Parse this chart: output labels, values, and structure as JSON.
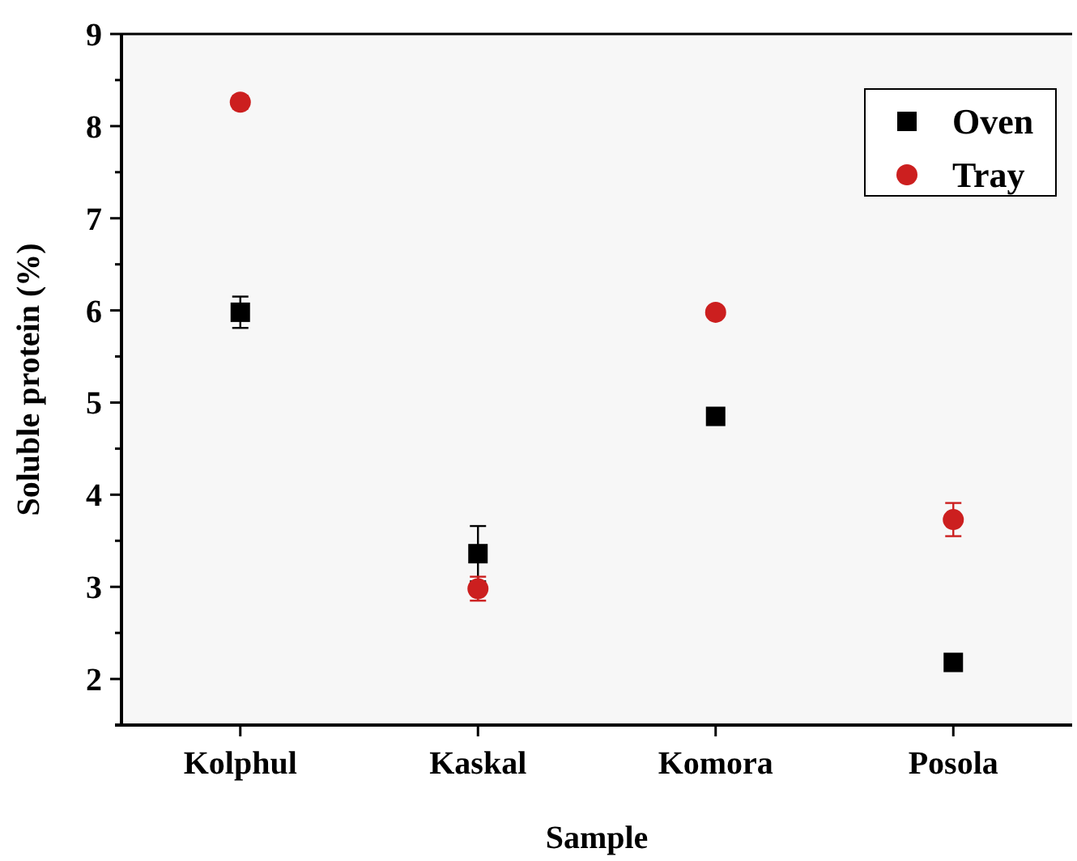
{
  "chart_data": {
    "type": "scatter",
    "xlabel": "Sample",
    "ylabel": "Soluble protein (%)",
    "categories": [
      "Kolphul",
      "Kaskal",
      "Komora",
      "Posola"
    ],
    "series": [
      {
        "name": "Oven",
        "color": "#000000",
        "marker": "square",
        "values": [
          5.98,
          3.36,
          4.85,
          2.18
        ],
        "errors": [
          0.17,
          0.3,
          null,
          null
        ]
      },
      {
        "name": "Tray",
        "color": "#cc1f1f",
        "marker": "circle",
        "values": [
          8.26,
          2.98,
          5.98,
          3.73
        ],
        "errors": [
          0.07,
          0.13,
          0.05,
          0.18
        ]
      }
    ],
    "ylim": [
      1.5,
      9
    ],
    "yticks": [
      2,
      3,
      4,
      5,
      6,
      7,
      8,
      9
    ],
    "grid": false,
    "legend": "top right"
  }
}
